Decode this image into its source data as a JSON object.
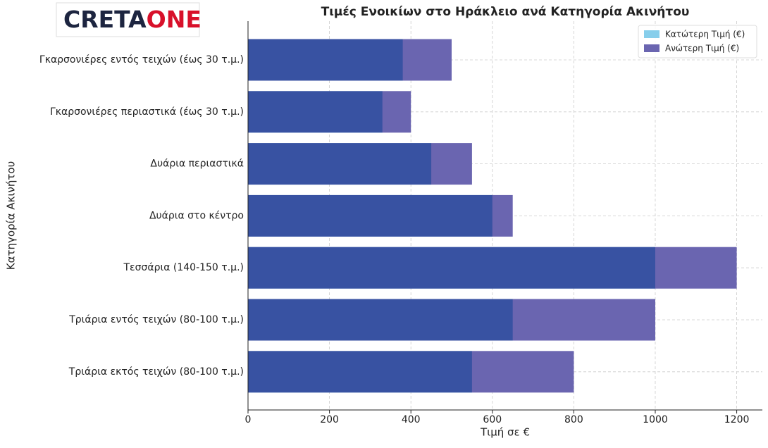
{
  "logo": [
    "CRETA",
    "ONE"
  ],
  "chart_data": {
    "type": "barh_overlap",
    "title": "Τιμές Ενοικίων στο Ηράκλειο ανά Κατηγορία Ακινήτου",
    "xlabel": "Τιμή σε €",
    "ylabel": "Κατηγορία Ακινήτου",
    "categories": [
      "Γκαρσονιέρες εντός τειχών (έως 30 τ.μ.)",
      "Γκαρσονιέρες περιαστικά (έως 30 τ.μ.)",
      "Δυάρια περιαστικά",
      "Δυάρια στο κέντρο",
      "Τεσσάρια (140-150 τ.μ.)",
      "Τριάρια εντός τειχών (80-100 τ.μ.)",
      "Τριάρια εκτός τειχών (80-100 τ.μ.)"
    ],
    "series": [
      {
        "name": "Κατώτερη Τιμή (€)",
        "color": "#87ceeb",
        "values": [
          380,
          330,
          450,
          600,
          1000,
          650,
          550
        ]
      },
      {
        "name": "Ανώτερη Τιμή (€)",
        "color": "#6a65b0",
        "values": [
          500,
          400,
          550,
          650,
          1200,
          1000,
          800
        ]
      }
    ],
    "xlim": [
      0,
      1263
    ],
    "xticks": [
      0,
      200,
      400,
      600,
      800,
      1000,
      1200
    ],
    "grid": true,
    "legend": "upper right"
  }
}
